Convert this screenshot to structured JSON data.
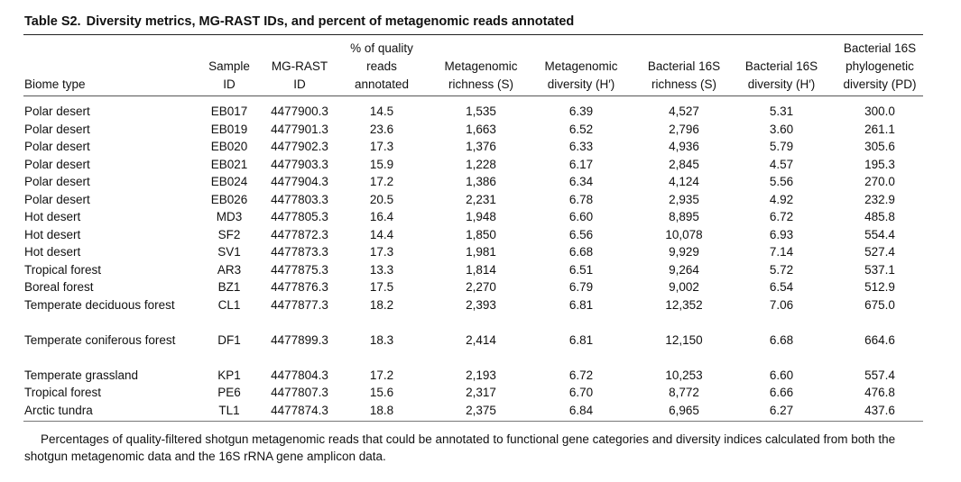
{
  "caption": {
    "label": "Table S2.",
    "title": "Diversity metrics, MG-RAST IDs, and percent of metagenomic reads annotated"
  },
  "columns": [
    {
      "key": "biome",
      "lines": [
        "Biome type"
      ]
    },
    {
      "key": "sample",
      "lines": [
        "Sample",
        "ID"
      ]
    },
    {
      "key": "mgrast",
      "lines": [
        "MG-RAST",
        "ID"
      ]
    },
    {
      "key": "pct",
      "lines": [
        "% of quality",
        "reads",
        "annotated"
      ]
    },
    {
      "key": "mrich",
      "lines": [
        "Metagenomic",
        "richness (S)"
      ]
    },
    {
      "key": "mdiv",
      "lines": [
        "Metagenomic",
        "diversity (H′)"
      ]
    },
    {
      "key": "brich",
      "lines": [
        "Bacterial 16S",
        "richness (S)"
      ]
    },
    {
      "key": "bdiv",
      "lines": [
        "Bacterial 16S",
        "diversity (H′)"
      ]
    },
    {
      "key": "pd",
      "lines": [
        "Bacterial 16S",
        "phylogenetic",
        "diversity (PD)"
      ]
    }
  ],
  "rows": [
    {
      "biome": "Polar desert",
      "sample": "EB017",
      "mgrast": "4477900.3",
      "pct": "14.5",
      "mrich": "1,535",
      "mdiv": "6.39",
      "brich": "4,527",
      "bdiv": "5.31",
      "pd": "300.0"
    },
    {
      "biome": "Polar desert",
      "sample": "EB019",
      "mgrast": "4477901.3",
      "pct": "23.6",
      "mrich": "1,663",
      "mdiv": "6.52",
      "brich": "2,796",
      "bdiv": "3.60",
      "pd": "261.1"
    },
    {
      "biome": "Polar desert",
      "sample": "EB020",
      "mgrast": "4477902.3",
      "pct": "17.3",
      "mrich": "1,376",
      "mdiv": "6.33",
      "brich": "4,936",
      "bdiv": "5.79",
      "pd": "305.6"
    },
    {
      "biome": "Polar desert",
      "sample": "EB021",
      "mgrast": "4477903.3",
      "pct": "15.9",
      "mrich": "1,228",
      "mdiv": "6.17",
      "brich": "2,845",
      "bdiv": "4.57",
      "pd": "195.3"
    },
    {
      "biome": "Polar desert",
      "sample": "EB024",
      "mgrast": "4477904.3",
      "pct": "17.2",
      "mrich": "1,386",
      "mdiv": "6.34",
      "brich": "4,124",
      "bdiv": "5.56",
      "pd": "270.0"
    },
    {
      "biome": "Polar desert",
      "sample": "EB026",
      "mgrast": "4477803.3",
      "pct": "20.5",
      "mrich": "2,231",
      "mdiv": "6.78",
      "brich": "2,935",
      "bdiv": "4.92",
      "pd": "232.9"
    },
    {
      "biome": "Hot desert",
      "sample": "MD3",
      "mgrast": "4477805.3",
      "pct": "16.4",
      "mrich": "1,948",
      "mdiv": "6.60",
      "brich": "8,895",
      "bdiv": "6.72",
      "pd": "485.8"
    },
    {
      "biome": "Hot desert",
      "sample": "SF2",
      "mgrast": "4477872.3",
      "pct": "14.4",
      "mrich": "1,850",
      "mdiv": "6.56",
      "brich": "10,078",
      "bdiv": "6.93",
      "pd": "554.4"
    },
    {
      "biome": "Hot desert",
      "sample": "SV1",
      "mgrast": "4477873.3",
      "pct": "17.3",
      "mrich": "1,981",
      "mdiv": "6.68",
      "brich": "9,929",
      "bdiv": "7.14",
      "pd": "527.4"
    },
    {
      "biome": "Tropical forest",
      "sample": "AR3",
      "mgrast": "4477875.3",
      "pct": "13.3",
      "mrich": "1,814",
      "mdiv": "6.51",
      "brich": "9,264",
      "bdiv": "5.72",
      "pd": "537.1"
    },
    {
      "biome": "Boreal forest",
      "sample": "BZ1",
      "mgrast": "4477876.3",
      "pct": "17.5",
      "mrich": "2,270",
      "mdiv": "6.79",
      "brich": "9,002",
      "bdiv": "6.54",
      "pd": "512.9"
    },
    {
      "biome": "Temperate deciduous forest",
      "sample": "CL1",
      "mgrast": "4477877.3",
      "pct": "18.2",
      "mrich": "2,393",
      "mdiv": "6.81",
      "brich": "12,352",
      "bdiv": "7.06",
      "pd": "675.0"
    },
    {
      "biome": "Temperate coniferous forest",
      "sample": "DF1",
      "mgrast": "4477899.3",
      "pct": "18.3",
      "mrich": "2,414",
      "mdiv": "6.81",
      "brich": "12,150",
      "bdiv": "6.68",
      "pd": "664.6"
    },
    {
      "biome": "Temperate grassland",
      "sample": "KP1",
      "mgrast": "4477804.3",
      "pct": "17.2",
      "mrich": "2,193",
      "mdiv": "6.72",
      "brich": "10,253",
      "bdiv": "6.60",
      "pd": "557.4"
    },
    {
      "biome": "Tropical forest",
      "sample": "PE6",
      "mgrast": "4477807.3",
      "pct": "15.6",
      "mrich": "2,317",
      "mdiv": "6.70",
      "brich": "8,772",
      "bdiv": "6.66",
      "pd": "476.8"
    },
    {
      "biome": "Arctic tundra",
      "sample": "TL1",
      "mgrast": "4477874.3",
      "pct": "18.8",
      "mrich": "2,375",
      "mdiv": "6.84",
      "brich": "6,965",
      "bdiv": "6.27",
      "pd": "437.6"
    }
  ],
  "footnote": "Percentages of quality-filtered shotgun metagenomic reads that could be annotated to functional gene categories and diversity indices calculated from both the shotgun metagenomic data and the 16S rRNA gene amplicon data."
}
